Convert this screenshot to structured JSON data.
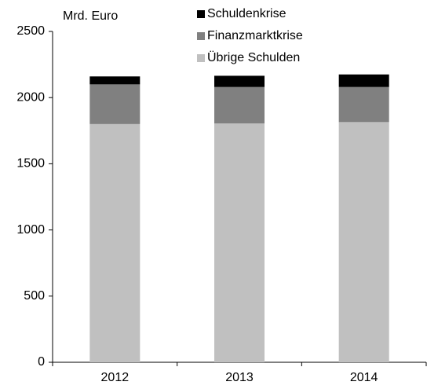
{
  "chart_data": {
    "type": "stacked_bar",
    "y_label": "Mrd. Euro",
    "categories": [
      "2012",
      "2013",
      "2014"
    ],
    "series": [
      {
        "name": "Übrige Schulden",
        "color": "#c0c0c0",
        "values": [
          1800,
          1805,
          1815
        ]
      },
      {
        "name": "Finanzmarktkrise",
        "color": "#808080",
        "values": [
          300,
          275,
          265
        ]
      },
      {
        "name": "Schuldenkrise",
        "color": "#000000",
        "values": [
          60,
          85,
          95
        ]
      }
    ],
    "ylim": [
      0,
      2500
    ],
    "yticks": [
      0,
      500,
      1000,
      1500,
      2000,
      2500
    ],
    "legend": "top"
  }
}
